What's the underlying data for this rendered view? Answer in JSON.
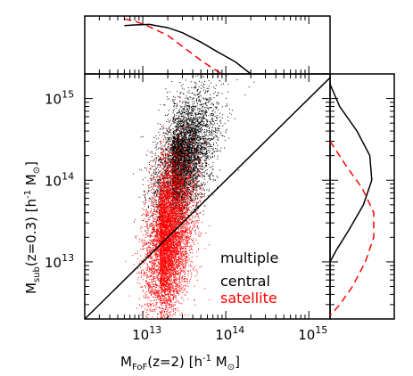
{
  "chart_data": {
    "type": "scatter",
    "xscale": "log",
    "yscale": "log",
    "xlim": [
      2000000000000.0,
      1800000000000000.0
    ],
    "ylim": [
      2000000000000.0,
      2000000000000000.0
    ],
    "x_ticks": [
      {
        "value": 10000000000000.0,
        "base": "10",
        "exp": "13"
      },
      {
        "value": 100000000000000.0,
        "base": "10",
        "exp": "14"
      },
      {
        "value": 1000000000000000.0,
        "base": "10",
        "exp": "15"
      }
    ],
    "y_ticks": [
      {
        "value": 10000000000000.0,
        "base": "10",
        "exp": "13"
      },
      {
        "value": 100000000000000.0,
        "base": "10",
        "exp": "14"
      },
      {
        "value": 1000000000000000.0,
        "base": "10",
        "exp": "15"
      }
    ],
    "xlabel": {
      "pre": "M",
      "sub": "FoF",
      "post": "(z=2)  [h",
      "sup": "-1",
      "end": " M",
      "sun": "⊙",
      "close": "]"
    },
    "ylabel": {
      "pre": "M",
      "sub": "sub",
      "post": "(z=0.3)  [h",
      "sup": "-1",
      "end": " M",
      "sun": "⊙",
      "close": "]"
    },
    "legend": [
      {
        "label": "multiple",
        "color": "#000000"
      },
      {
        "label": "central",
        "color": "#000000"
      },
      {
        "label": "satellite",
        "color": "#ff0000"
      }
    ],
    "reference_line": {
      "label": "one-to-one",
      "x": [
        2000000000000.0,
        1800000000000000.0
      ],
      "y": [
        2000000000000.0,
        1800000000000000.0
      ]
    },
    "scatter_series": [
      {
        "name": "central",
        "color": "#000000",
        "x_min": 6000000000000.0,
        "x_center_log": 13.35,
        "x_sigma_log": 0.23,
        "y_offset_log": 0.78,
        "y_sigma_log": 0.33,
        "count": 5200
      },
      {
        "name": "satellite",
        "color": "#ff0000",
        "x_min": 6000000000000.0,
        "x_center_log": 13.2,
        "x_sigma_log": 0.18,
        "y_offset_log": 0.0,
        "y_sigma_log": 0.45,
        "count": 6500
      }
    ],
    "marginal_top": {
      "series": [
        {
          "name": "central",
          "color": "#000000",
          "dash": "none",
          "x": [
            6000000000000.0,
            8000000000000.0,
            12000000000000.0,
            20000000000000.0,
            30000000000000.0,
            50000000000000.0,
            80000000000000.0,
            130000000000000.0,
            200000000000000.0
          ],
          "density": [
            0.88,
            0.89,
            0.9,
            0.84,
            0.75,
            0.58,
            0.4,
            0.22,
            0.0
          ]
        },
        {
          "name": "satellite",
          "color": "#ff0000",
          "dash": "8,5",
          "x": [
            6000000000000.0,
            8000000000000.0,
            12000000000000.0,
            20000000000000.0,
            30000000000000.0,
            50000000000000.0,
            70000000000000.0,
            90000000000000.0
          ],
          "density": [
            1.0,
            0.96,
            0.86,
            0.7,
            0.5,
            0.25,
            0.1,
            0.0
          ]
        }
      ]
    },
    "marginal_right": {
      "series": [
        {
          "name": "central",
          "color": "#000000",
          "dash": "none",
          "y": [
            1500000000000000.0,
            800000000000000.0,
            400000000000000.0,
            200000000000000.0,
            100000000000000.0,
            50000000000000.0,
            25000000000000.0,
            14000000000000.0,
            10000000000000.0
          ],
          "density": [
            0.0,
            0.15,
            0.42,
            0.62,
            0.65,
            0.52,
            0.3,
            0.1,
            0.0
          ]
        },
        {
          "name": "satellite",
          "color": "#ff0000",
          "dash": "8,5",
          "y": [
            300000000000000.0,
            150000000000000.0,
            80000000000000.0,
            40000000000000.0,
            20000000000000.0,
            10000000000000.0,
            5000000000000.0,
            3000000000000.0,
            2200000000000.0
          ],
          "density": [
            0.0,
            0.25,
            0.5,
            0.68,
            0.68,
            0.55,
            0.35,
            0.15,
            0.0
          ]
        }
      ]
    }
  }
}
